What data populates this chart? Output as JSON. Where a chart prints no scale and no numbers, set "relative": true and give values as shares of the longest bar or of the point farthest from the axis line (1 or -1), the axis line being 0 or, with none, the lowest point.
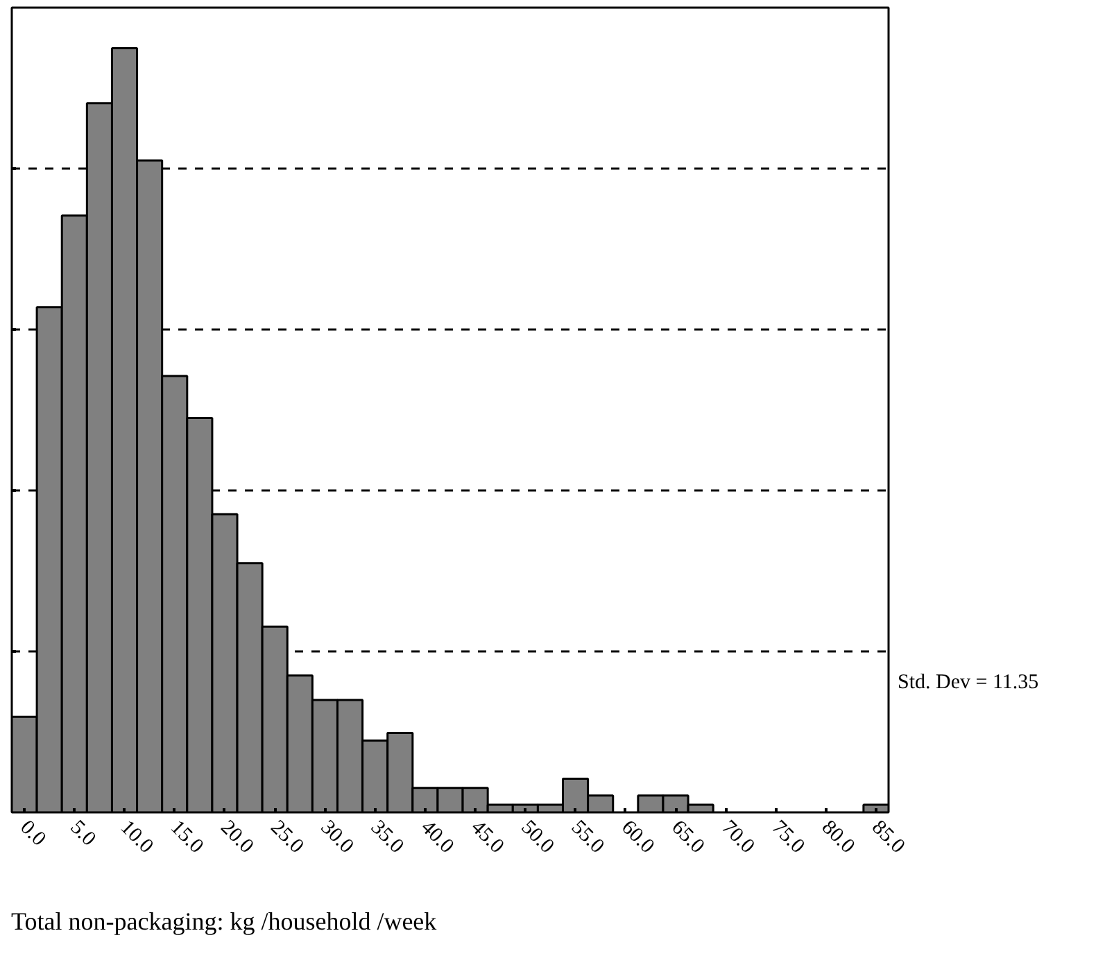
{
  "chart_data": {
    "type": "bar",
    "relative": true,
    "xlabel": "Total non-packaging: kg /household /week",
    "categories": [
      "0.0",
      null,
      "5.0",
      null,
      "10.0",
      null,
      "15.0",
      null,
      "20.0",
      null,
      "25.0",
      null,
      "30.0",
      null,
      "35.0",
      null,
      "40.0",
      null,
      "45.0",
      null,
      "50.0",
      null,
      "55.0",
      null,
      "60.0",
      null,
      "65.0",
      null,
      "70.0",
      null,
      "75.0",
      null,
      "80.0",
      null,
      "85.0"
    ],
    "values": [
      0.125,
      0.661,
      0.781,
      0.928,
      1,
      0.853,
      0.571,
      0.516,
      0.39,
      0.326,
      0.243,
      0.179,
      0.147,
      0.147,
      0.094,
      0.104,
      0.032,
      0.032,
      0.032,
      0.01,
      0.01,
      0.01,
      0.044,
      0.022,
      0,
      0.022,
      0.022,
      0.01,
      0,
      0,
      0,
      0,
      0,
      0,
      0.01
    ],
    "color": "#808080",
    "grid": "y",
    "tick_labels": "x",
    "line_style": "dashed",
    "annotations": [
      "Std. Dev = 11.35"
    ]
  }
}
